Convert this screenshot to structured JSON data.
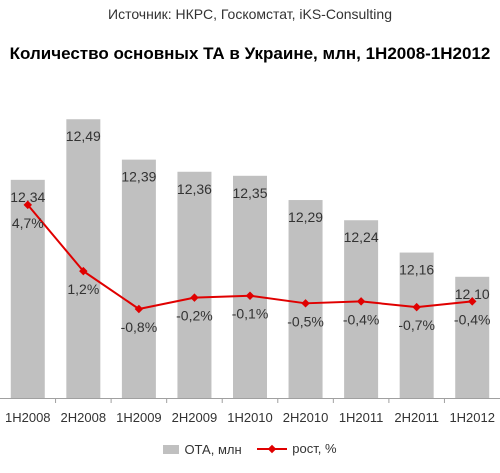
{
  "source": "Источник: НКРС, Госкомстат, iKS-Consulting",
  "title": "Количество основных ТА в Украине, млн, 1H2008-1H2012",
  "colors": {
    "bars": "#c0c0c0",
    "line": "#e00000",
    "text": "#333333"
  },
  "legend": {
    "bars_label": "ОТА, млн",
    "line_label": "рост, %"
  },
  "chart_data": {
    "type": "bar",
    "categories": [
      "1H2008",
      "2H2008",
      "1H2009",
      "2H2009",
      "1H2010",
      "2H2010",
      "1H2011",
      "2H2011",
      "1H2012"
    ],
    "series": [
      {
        "name": "ОТА, млн",
        "type": "bar",
        "values": [
          12.34,
          12.49,
          12.39,
          12.36,
          12.35,
          12.29,
          12.24,
          12.16,
          12.1
        ],
        "labels": [
          "12,34",
          "12,49",
          "12,39",
          "12,36",
          "12,35",
          "12,29",
          "12,24",
          "12,16",
          "12,10"
        ]
      },
      {
        "name": "рост, %",
        "type": "line",
        "axis": "secondary",
        "values": [
          4.7,
          1.2,
          -0.8,
          -0.2,
          -0.1,
          -0.5,
          -0.4,
          -0.7,
          -0.4
        ],
        "labels": [
          "4,7%",
          "1,2%",
          "-0,8%",
          "-0,2%",
          "-0,1%",
          "-0,5%",
          "-0,4%",
          "-0,7%",
          "-0,4%"
        ]
      }
    ],
    "ylim": [
      11.8,
      12.55
    ],
    "y2lim": [
      -5.5,
      10.5
    ],
    "grid": false,
    "legend_position": "bottom"
  }
}
